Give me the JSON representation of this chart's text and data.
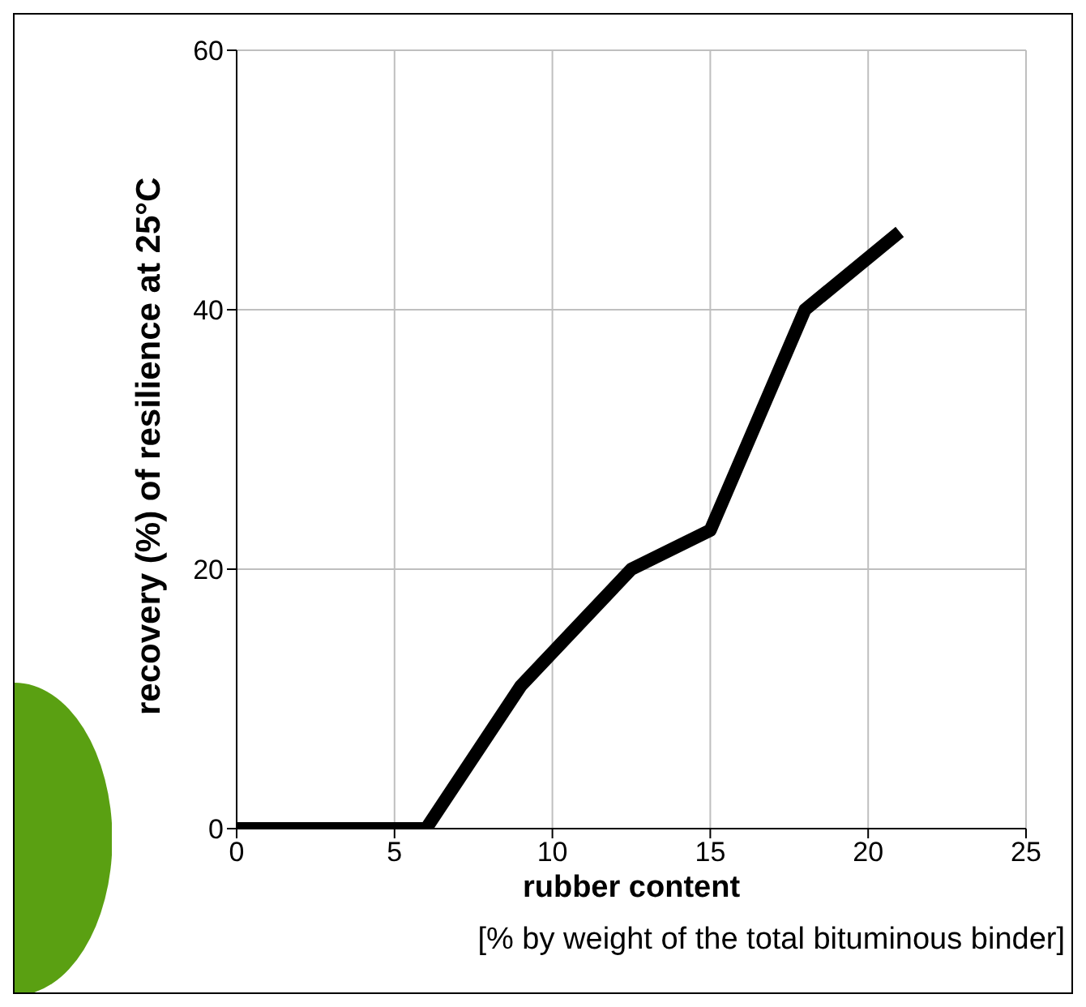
{
  "chart_data": {
    "type": "line",
    "xlabel": "rubber content",
    "ylabel": "recovery (%) of resilience at 25°C",
    "annotations": [
      "[% by weight of the total bituminous binder]"
    ],
    "x": [
      0,
      6,
      9,
      12.5,
      15,
      18,
      21
    ],
    "series": [
      {
        "color": "#000000",
        "values": [
          0,
          0,
          11,
          20,
          23,
          40,
          46
        ]
      }
    ],
    "xlim": [
      0,
      25
    ],
    "xticks": [
      0,
      5,
      10,
      15,
      20,
      25
    ],
    "ylim": [
      0,
      60
    ],
    "yticks": [
      0,
      20,
      40,
      60
    ],
    "grid": true,
    "marker": "none",
    "line_style": "solid",
    "legend": false
  }
}
